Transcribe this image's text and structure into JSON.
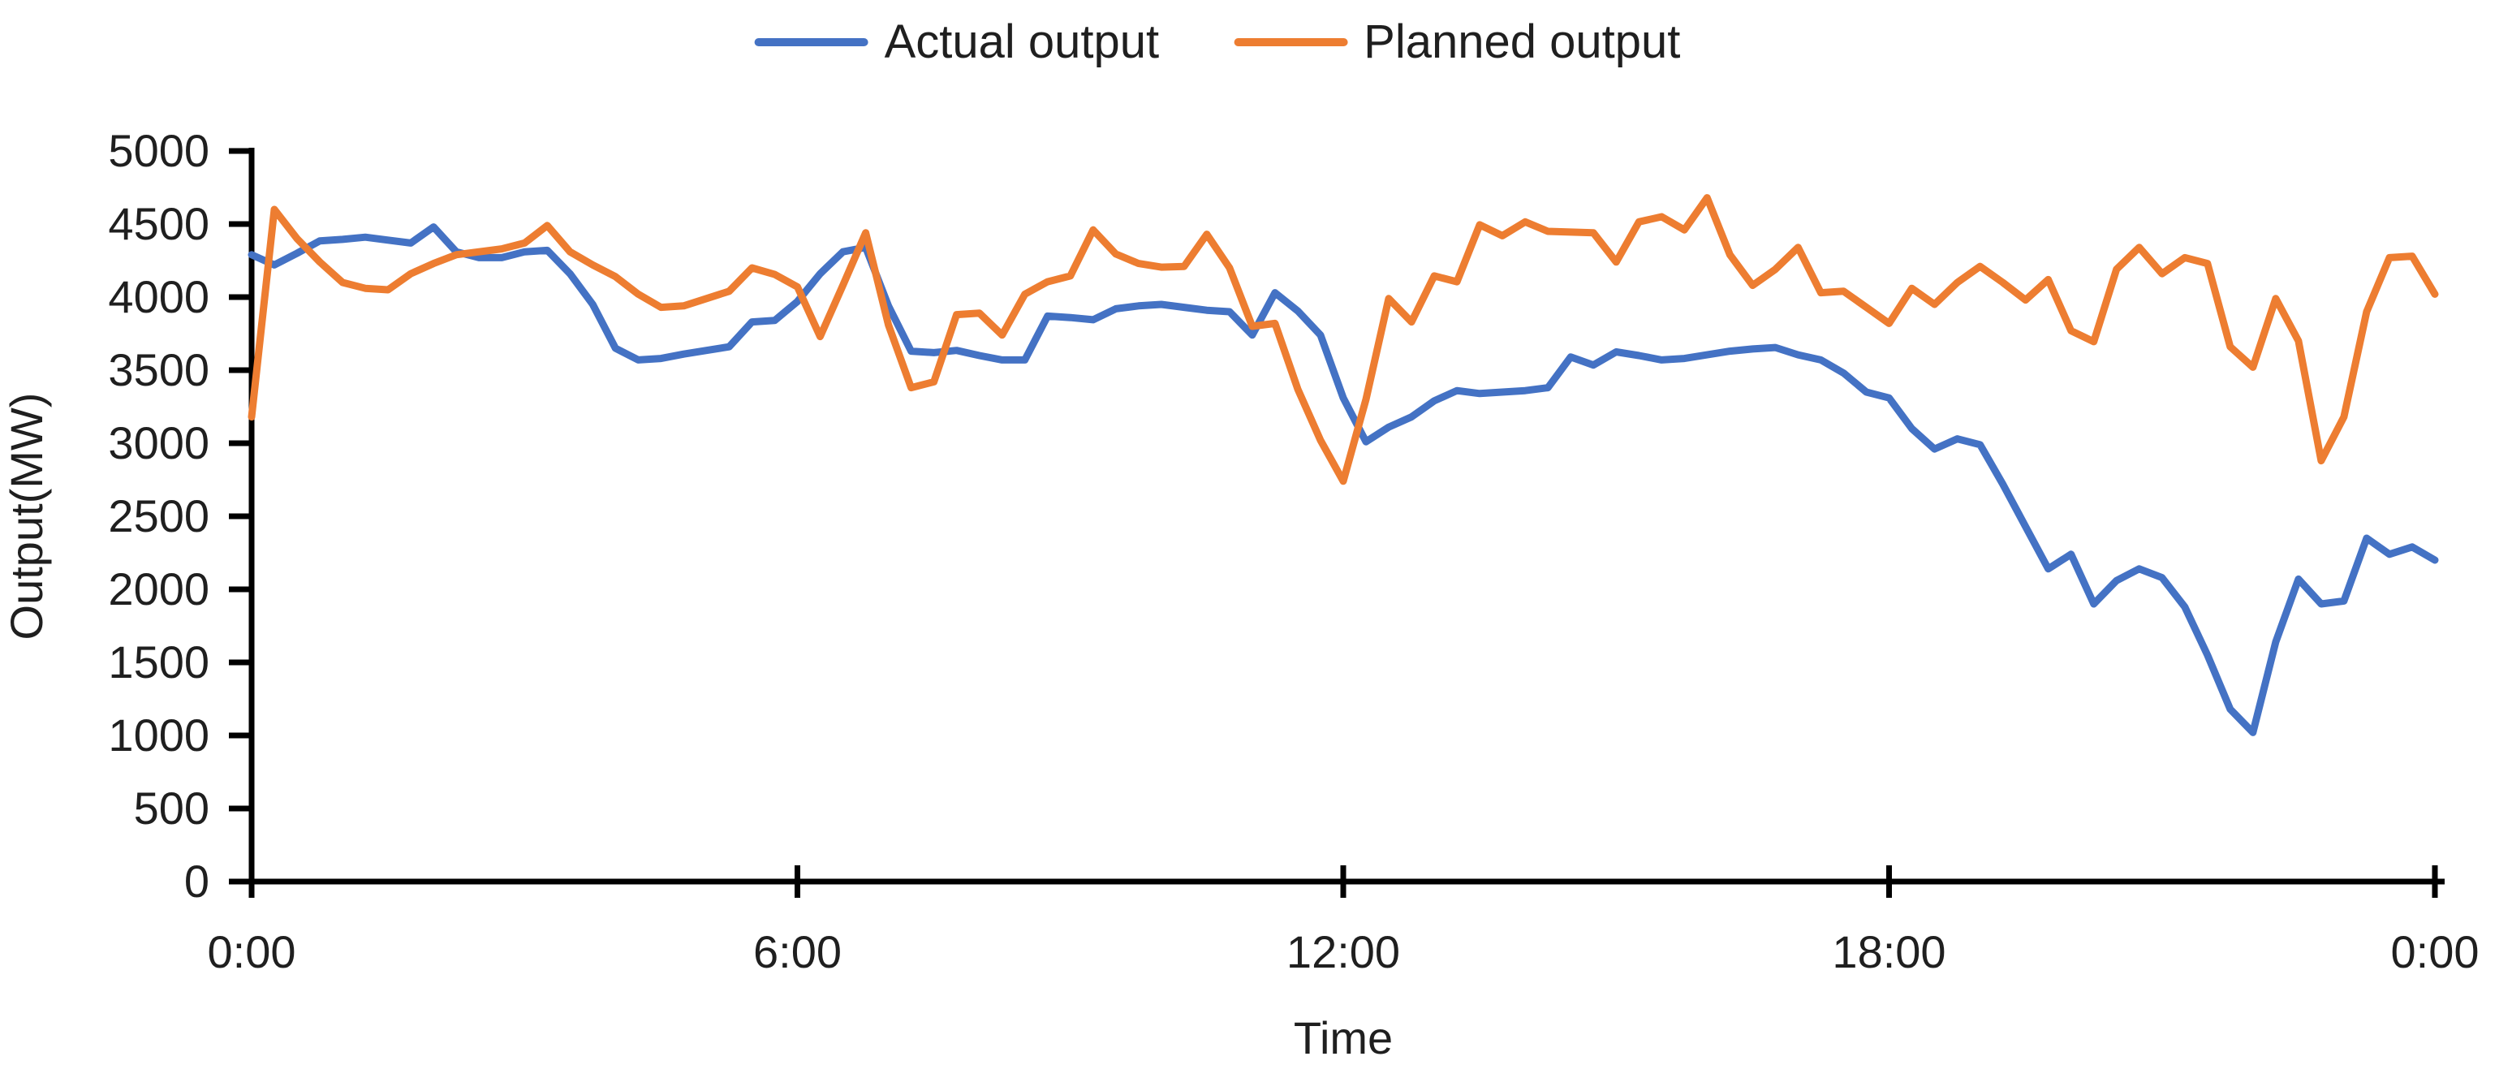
{
  "page": {
    "background": "#ffffff"
  },
  "legend": {
    "items": [
      {
        "label": "Actual output",
        "color": "#4472C4"
      },
      {
        "label": "Planned output",
        "color": "#ED7D31"
      }
    ]
  },
  "chart_data": {
    "type": "line",
    "title": "",
    "xlabel": "Time",
    "ylabel": "Output(MW)",
    "ylim": [
      0,
      5000
    ],
    "y_tick_step": 500,
    "y_ticks": [
      0,
      500,
      1000,
      1500,
      2000,
      2500,
      3000,
      3500,
      4000,
      4500,
      5000
    ],
    "x_tick_labels": [
      "0:00",
      "6:00",
      "12:00",
      "18:00",
      "0:00"
    ],
    "grid": false,
    "legend_position": "top-center",
    "interval_minutes": 15,
    "axis_color": "#000000",
    "text_color": "#1f1f1f",
    "times": [
      "0:00",
      "0:15",
      "0:30",
      "0:45",
      "1:00",
      "1:15",
      "1:30",
      "1:45",
      "2:00",
      "2:15",
      "2:30",
      "2:45",
      "3:00",
      "3:15",
      "3:30",
      "3:45",
      "4:00",
      "4:15",
      "4:30",
      "4:45",
      "5:00",
      "5:15",
      "5:30",
      "5:45",
      "6:00",
      "6:15",
      "6:30",
      "6:45",
      "7:00",
      "7:15",
      "7:30",
      "7:45",
      "8:00",
      "8:15",
      "8:30",
      "8:45",
      "9:00",
      "9:15",
      "9:30",
      "9:45",
      "10:00",
      "10:15",
      "10:30",
      "10:45",
      "11:00",
      "11:15",
      "11:30",
      "11:45",
      "12:00",
      "12:15",
      "12:30",
      "12:45",
      "13:00",
      "13:15",
      "13:30",
      "13:45",
      "14:00",
      "14:15",
      "14:30",
      "14:45",
      "15:00",
      "15:15",
      "15:30",
      "15:45",
      "16:00",
      "16:15",
      "16:30",
      "16:45",
      "17:00",
      "17:15",
      "17:30",
      "17:45",
      "18:00",
      "18:15",
      "18:30",
      "18:45",
      "19:00",
      "19:15",
      "19:30",
      "19:45",
      "20:00",
      "20:15",
      "20:30",
      "20:45",
      "21:00",
      "21:15",
      "21:30",
      "21:45",
      "22:00",
      "22:15",
      "22:30",
      "22:45",
      "23:00",
      "23:15",
      "23:30",
      "23:45",
      "0:00"
    ],
    "series": [
      {
        "name": "Actual output",
        "color": "#4472C4",
        "values": [
          4290,
          4220,
          4300,
          4385,
          4395,
          4410,
          4390,
          4370,
          4480,
          4310,
          4270,
          4270,
          4310,
          4320,
          4160,
          3950,
          3650,
          3570,
          3580,
          3610,
          3635,
          3660,
          3830,
          3840,
          3970,
          4160,
          4310,
          4340,
          3940,
          3630,
          3620,
          3635,
          3600,
          3570,
          3570,
          3870,
          3860,
          3845,
          3920,
          3940,
          3950,
          3930,
          3910,
          3900,
          3740,
          4030,
          3905,
          3740,
          3310,
          3010,
          3110,
          3180,
          3290,
          3360,
          3340,
          3350,
          3360,
          3380,
          3590,
          3535,
          3625,
          3600,
          3570,
          3580,
          3605,
          3630,
          3645,
          3655,
          3605,
          3570,
          3480,
          3350,
          3310,
          3100,
          2960,
          3030,
          2990,
          2720,
          2430,
          2140,
          2240,
          1900,
          2060,
          2140,
          2080,
          1880,
          1550,
          1180,
          1020,
          1640,
          2070,
          1900,
          1920,
          2350,
          2240,
          2290,
          2200
        ]
      },
      {
        "name": "Planned output",
        "color": "#ED7D31",
        "values": [
          3180,
          4600,
          4400,
          4240,
          4100,
          4060,
          4050,
          4160,
          4230,
          4290,
          4310,
          4330,
          4370,
          4490,
          4310,
          4220,
          4140,
          4020,
          3930,
          3940,
          3990,
          4040,
          4200,
          4155,
          4070,
          3730,
          4080,
          4440,
          3810,
          3380,
          3420,
          3880,
          3890,
          3740,
          4020,
          4105,
          4145,
          4460,
          4295,
          4230,
          4205,
          4210,
          4430,
          4200,
          3800,
          3820,
          3370,
          3020,
          2740,
          3300,
          3990,
          3830,
          4145,
          4105,
          4495,
          4420,
          4515,
          4450,
          4445,
          4440,
          4240,
          4515,
          4550,
          4460,
          4680,
          4290,
          4080,
          4190,
          4340,
          4030,
          4040,
          3930,
          3820,
          4060,
          3950,
          4100,
          4210,
          4100,
          3980,
          4120,
          3770,
          3695,
          4190,
          4340,
          4160,
          4270,
          4230,
          3660,
          3520,
          3990,
          3700,
          2880,
          3180,
          3900,
          4270,
          4280,
          4020
        ]
      }
    ],
    "layout": {
      "plot_left": 310,
      "plot_right": 3000,
      "plot_top": 186,
      "plot_bottom": 1086,
      "axis_extend_right": 3012,
      "tick_len_y": 28,
      "tick_cross_x": 20,
      "y_label_x": 258,
      "x_label_y": 1192,
      "xlabel_pos": [
        1655,
        1298
      ],
      "ylabel_pos": [
        52,
        636
      ],
      "tick_font_size": 56,
      "axis_title_font_size": 56,
      "line_width": 9,
      "axis_width": 7
    }
  }
}
